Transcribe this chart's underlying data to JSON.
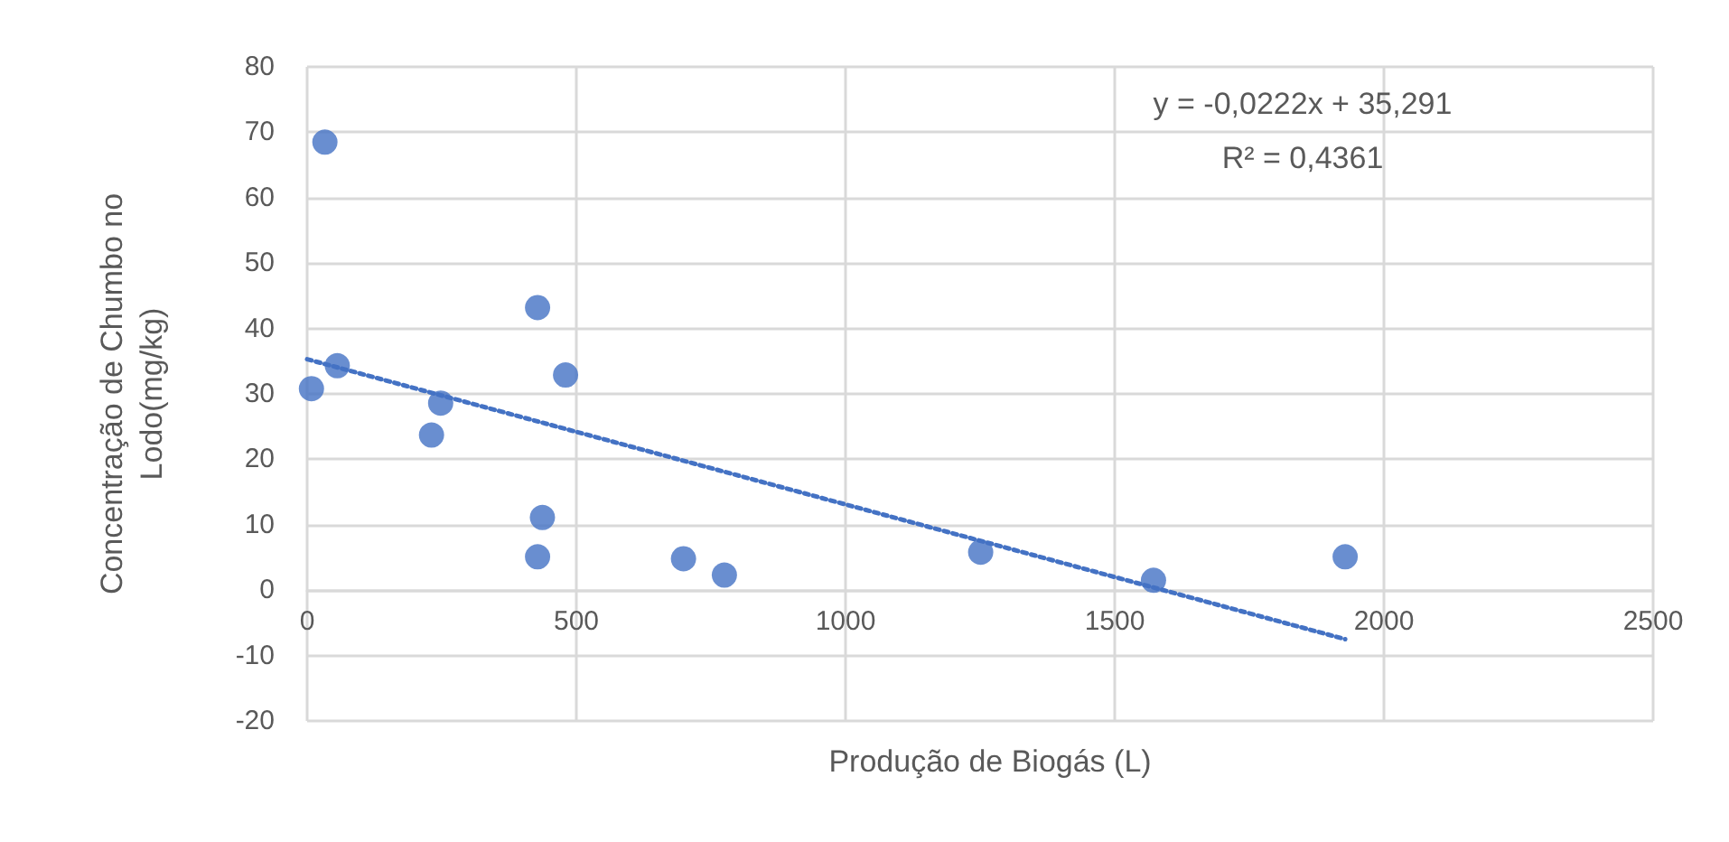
{
  "chart_data": {
    "type": "scatter",
    "xlabel": "Produção de Biogás (L)",
    "ylabel": "Concentração de Chumbo no Lodo(mg/kg)",
    "xlim": [
      0,
      2500
    ],
    "xticks": [
      0,
      500,
      1000,
      1500,
      2000,
      2500
    ],
    "ylim": [
      -20,
      80
    ],
    "yticks": [
      -20,
      -10,
      0,
      10,
      20,
      30,
      40,
      50,
      60,
      70,
      80
    ],
    "grid": true,
    "marker": "circle",
    "annotations": [
      "y = -0,0222x + 35,291",
      "R² = 0,4361"
    ],
    "series": [
      {
        "color": "#4472c4",
        "x": [
          8,
          33,
          56,
          231,
          248,
          428,
          428,
          437,
          480,
          699,
          775,
          1251,
          1572,
          1928
        ],
        "values": [
          30.8,
          68.5,
          34.3,
          23.7,
          28.6,
          43.2,
          5.1,
          11.1,
          32.9,
          4.8,
          2.3,
          5.8,
          1.5,
          5.1
        ]
      },
      {
        "type": "line",
        "color": "#4472c4",
        "line_style": "dotted",
        "marker": "none",
        "x": [
          0,
          1928
        ],
        "values": [
          35.3,
          -7.5
        ]
      }
    ]
  }
}
